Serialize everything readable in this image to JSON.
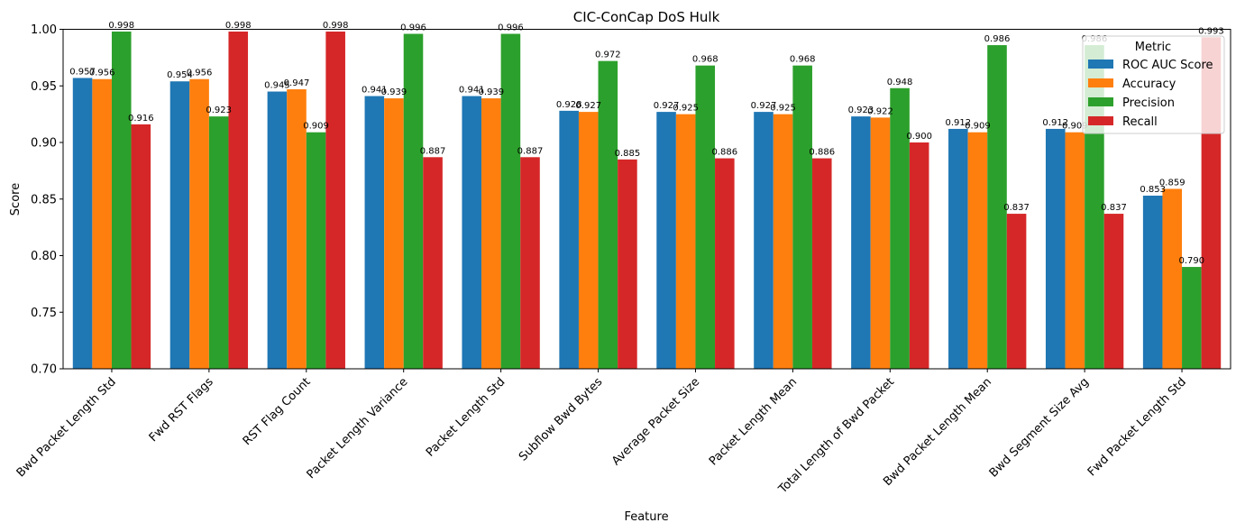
{
  "chart_data": {
    "type": "bar",
    "title": "CIC-ConCap DoS Hulk",
    "xlabel": "Feature",
    "ylabel": "Score",
    "ylim": [
      0.7,
      1.0
    ],
    "yticks": [
      "0.70",
      "0.75",
      "0.80",
      "0.85",
      "0.90",
      "0.95",
      "1.00"
    ],
    "legend": {
      "title": "Metric",
      "position": "upper-right"
    },
    "grid": false,
    "categories": [
      "Bwd Packet Length Std",
      "Fwd RST Flags",
      "RST Flag Count",
      "Packet Length Variance",
      "Packet Length Std",
      "Subflow Bwd Bytes",
      "Average Packet Size",
      "Packet Length Mean",
      "Total Length of Bwd Packet",
      "Bwd Packet Length Mean",
      "Bwd Segment Size Avg",
      "Fwd Packet Length Std"
    ],
    "series": [
      {
        "name": "ROC AUC Score",
        "color": "#1f77b4",
        "values": [
          0.957,
          0.954,
          0.945,
          0.941,
          0.941,
          0.928,
          0.927,
          0.927,
          0.923,
          0.912,
          0.912,
          0.853
        ]
      },
      {
        "name": "Accuracy",
        "color": "#ff7f0e",
        "values": [
          0.956,
          0.956,
          0.947,
          0.939,
          0.939,
          0.927,
          0.925,
          0.925,
          0.922,
          0.909,
          0.909,
          0.859
        ]
      },
      {
        "name": "Precision",
        "color": "#2ca02c",
        "values": [
          0.998,
          0.923,
          0.909,
          0.996,
          0.996,
          0.972,
          0.968,
          0.968,
          0.948,
          0.986,
          0.986,
          0.79
        ]
      },
      {
        "name": "Recall",
        "color": "#d62728",
        "values": [
          0.916,
          0.998,
          0.998,
          0.887,
          0.887,
          0.885,
          0.886,
          0.886,
          0.9,
          0.837,
          0.837,
          0.993
        ]
      }
    ]
  }
}
